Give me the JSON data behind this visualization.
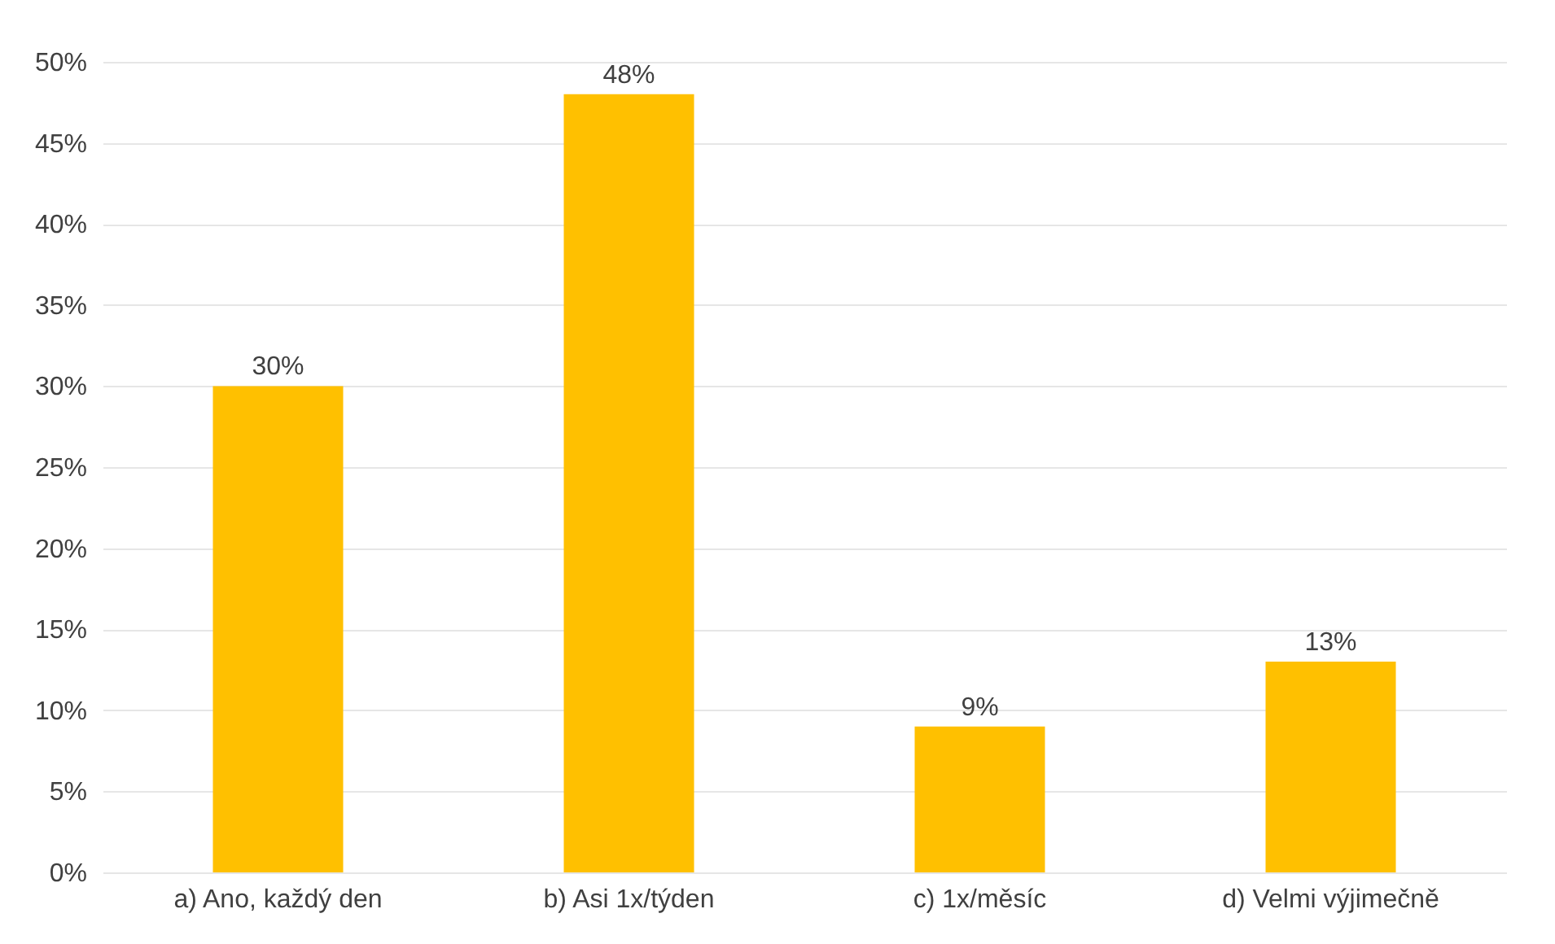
{
  "chart_data": {
    "type": "bar",
    "categories": [
      "a) Ano, každý den",
      "b) Asi 1x/týden",
      "c) 1x/měsíc",
      "d) Velmi výjimečně"
    ],
    "values": [
      30,
      48,
      9,
      13
    ],
    "value_labels": [
      "30%",
      "48%",
      "9%",
      "13%"
    ],
    "color": "#ffc000",
    "ylim": [
      0,
      50
    ],
    "yticks": [
      {
        "value": 0,
        "label": "0%"
      },
      {
        "value": 5,
        "label": "5%"
      },
      {
        "value": 10,
        "label": "10%"
      },
      {
        "value": 15,
        "label": "15%"
      },
      {
        "value": 20,
        "label": "20%"
      },
      {
        "value": 25,
        "label": "25%"
      },
      {
        "value": 30,
        "label": "30%"
      },
      {
        "value": 35,
        "label": "35%"
      },
      {
        "value": 40,
        "label": "40%"
      },
      {
        "value": 45,
        "label": "45%"
      },
      {
        "value": 50,
        "label": "50%"
      }
    ],
    "grid": "y"
  }
}
